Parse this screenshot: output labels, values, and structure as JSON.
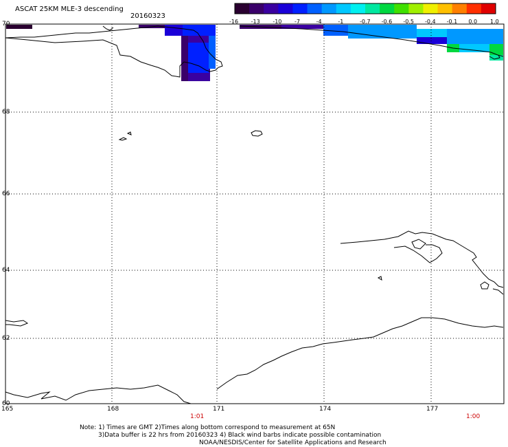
{
  "title": "ASCAT 25KM MLE-3 descending",
  "date": "20160323",
  "colorbar": {
    "labels": [
      "-16",
      "-13",
      "-10",
      "-7",
      "-4",
      "-1",
      "-0.7",
      "-0.6",
      "-0.5",
      "-0.4",
      "-0.1",
      "0.0",
      "1.0"
    ],
    "colors": [
      "#2a0030",
      "#3a006a",
      "#3a00a0",
      "#1a00d8",
      "#0020ff",
      "#0060ff",
      "#0098ff",
      "#00c8ff",
      "#00f0f0",
      "#00e8a0",
      "#00d840",
      "#40e000",
      "#a0f000",
      "#f0f000",
      "#ffc000",
      "#ff8000",
      "#ff3000",
      "#e00000"
    ]
  },
  "latitudes": [
    "70",
    "68",
    "66",
    "64",
    "62",
    "60"
  ],
  "longitudes": [
    "165",
    "168",
    "171",
    "174",
    "177"
  ],
  "times": [
    "1:01",
    "1:00"
  ],
  "notes": [
    "Note: 1) Times are GMT 2)Times along bottom correspond to measurement at 65N",
    "3)Data buffer is 22 hrs from 20160323 4) Black wind barbs indicate possible contamination",
    "NOAA/NESDIS/Center for Satellite Applications and Research"
  ]
}
